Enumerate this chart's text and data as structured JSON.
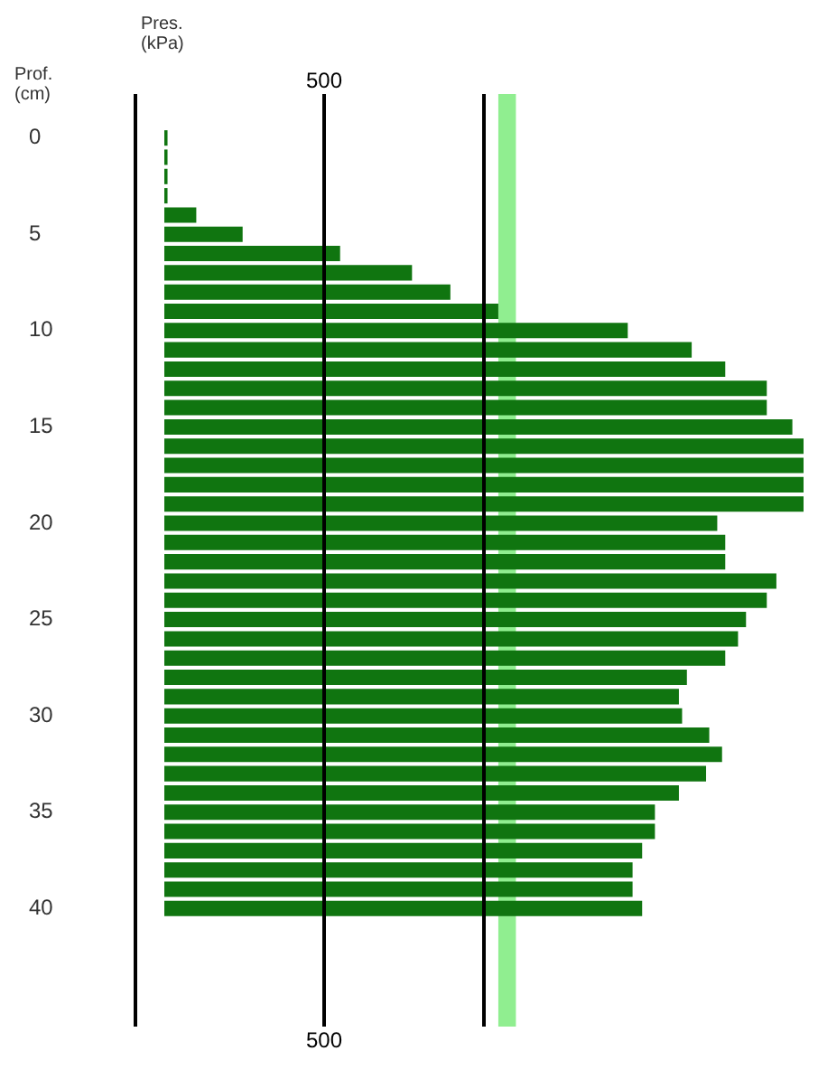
{
  "chart_data": {
    "type": "bar",
    "orientation": "horizontal",
    "xlabel": "Pres. (kPa)",
    "ylabel": "Prof. (cm)",
    "categories": [
      "0",
      null,
      null,
      null,
      null,
      "5",
      null,
      null,
      null,
      null,
      "10",
      null,
      null,
      null,
      null,
      "15",
      null,
      null,
      null,
      null,
      "20",
      null,
      null,
      null,
      null,
      "25",
      null,
      null,
      null,
      null,
      "30",
      null,
      null,
      null,
      null,
      "35",
      null,
      null,
      null,
      null,
      "40"
    ],
    "values": [
      10,
      10,
      10,
      10,
      100,
      245,
      550,
      775,
      895,
      1045,
      1450,
      1650,
      1755,
      1885,
      1885,
      1965,
      2000,
      2000,
      2000,
      2000,
      1730,
      1755,
      1755,
      1915,
      1885,
      1820,
      1795,
      1755,
      1635,
      1610,
      1620,
      1705,
      1745,
      1695,
      1610,
      1535,
      1535,
      1495,
      1465,
      1465,
      1495
    ],
    "color": "#107510",
    "xlim": [
      0,
      2000
    ],
    "xticks": [
      {
        "value": 500,
        "label": "500"
      },
      {
        "value": 1000,
        "label": null
      }
    ],
    "annotations": [
      "500"
    ],
    "grid": "x",
    "bands": [
      {
        "axis": "x",
        "from": 1045,
        "to": 1100,
        "color": "#90ee90"
      }
    ]
  }
}
